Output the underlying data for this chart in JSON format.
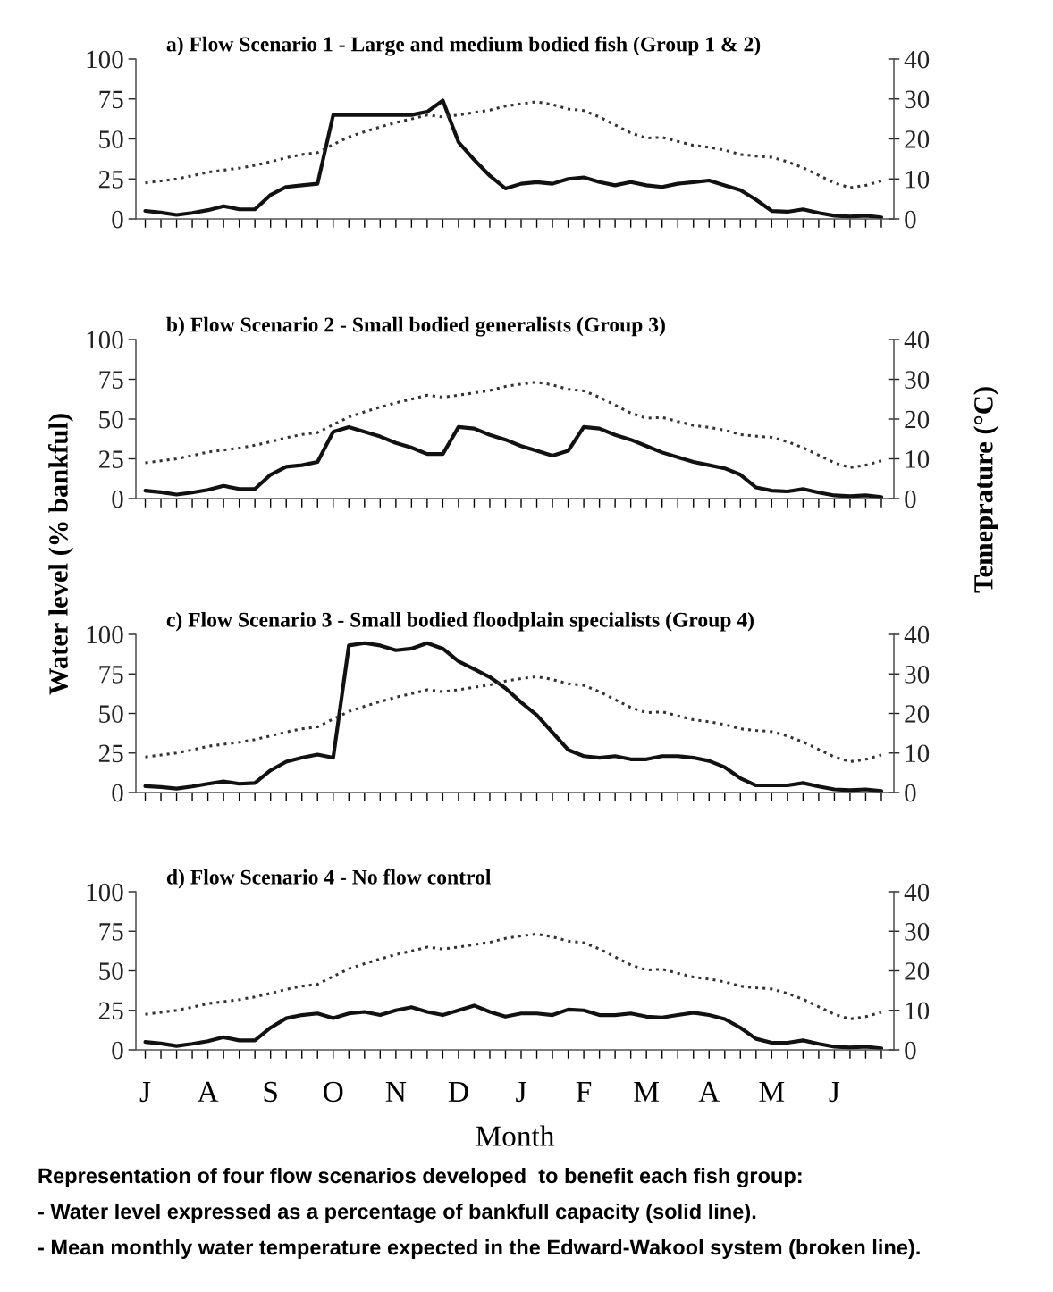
{
  "chart_data": [
    {
      "type": "line",
      "title": "a) Flow Scenario 1 - Large and medium bodied fish (Group 1 & 2)",
      "ylim": [
        0,
        100
      ],
      "yticks": [
        0,
        25,
        50,
        75,
        100
      ],
      "y2lim": [
        0,
        40
      ],
      "y2ticks": [
        0,
        10,
        20,
        30,
        40
      ],
      "grid": false,
      "legend": false,
      "marker": "none",
      "categories": [
        null,
        null,
        null,
        null,
        null,
        null,
        null,
        null,
        null,
        null,
        null,
        null,
        null,
        null,
        null,
        null,
        null,
        null,
        null,
        null,
        null,
        null,
        null,
        null,
        null,
        null,
        null,
        null,
        null,
        null,
        null,
        null,
        null,
        null,
        null,
        null,
        null,
        null,
        null,
        null,
        null,
        null,
        null,
        null,
        null,
        null,
        null,
        null
      ],
      "series": [
        {
          "color": "#111111",
          "line_style": "solid",
          "values": [
            5,
            4,
            2.5,
            3.8,
            5.5,
            8,
            6,
            6,
            15,
            20,
            21,
            22,
            65,
            65,
            65,
            65,
            65,
            65,
            67,
            74,
            48,
            37,
            27,
            19,
            22,
            23,
            22,
            25,
            26,
            23,
            21,
            23,
            21,
            20,
            22,
            23,
            24,
            21,
            18,
            12,
            5,
            4.5,
            6,
            3.8,
            2,
            1.5,
            2,
            1
          ]
        },
        {
          "color": "#333333",
          "line_style": "dotted",
          "axis": "y2",
          "values": [
            9,
            9.5,
            10,
            10.8,
            11.7,
            12.2,
            12.7,
            13.4,
            14.3,
            15.3,
            16.1,
            16.6,
            18.6,
            20.5,
            21.8,
            23,
            24.1,
            25,
            26,
            25.5,
            26,
            26.6,
            27.2,
            28.2,
            28.8,
            29.3,
            28.6,
            27.5,
            27.1,
            25.5,
            23.5,
            21.5,
            20.2,
            20.4,
            19.4,
            18.4,
            17.9,
            17.2,
            16.1,
            15.7,
            15.4,
            14.3,
            12.8,
            10.9,
            9,
            7.8,
            8.4,
            9.5
          ]
        }
      ]
    },
    {
      "type": "line",
      "title": "b) Flow Scenario 2 - Small bodied generalists (Group 3)",
      "ylabel": "Water level (% bankful)",
      "y2label": "Temeprature (°C)",
      "ylim": [
        0,
        100
      ],
      "yticks": [
        0,
        25,
        50,
        75,
        100
      ],
      "y2lim": [
        0,
        40
      ],
      "y2ticks": [
        0,
        10,
        20,
        30,
        40
      ],
      "grid": false,
      "legend": false,
      "marker": "none",
      "categories": [
        null,
        null,
        null,
        null,
        null,
        null,
        null,
        null,
        null,
        null,
        null,
        null,
        null,
        null,
        null,
        null,
        null,
        null,
        null,
        null,
        null,
        null,
        null,
        null,
        null,
        null,
        null,
        null,
        null,
        null,
        null,
        null,
        null,
        null,
        null,
        null,
        null,
        null,
        null,
        null,
        null,
        null,
        null,
        null,
        null,
        null,
        null,
        null
      ],
      "series": [
        {
          "color": "#111111",
          "line_style": "solid",
          "values": [
            5,
            4,
            2.5,
            3.8,
            5.5,
            8,
            6,
            6,
            15,
            20,
            21,
            23,
            42,
            45,
            42,
            39,
            35,
            32,
            28,
            28,
            45,
            44,
            40,
            37,
            33,
            30,
            27,
            30,
            45,
            44,
            40,
            37,
            33,
            29,
            26,
            23,
            21,
            19,
            15,
            7,
            5,
            4.5,
            6,
            3.8,
            2,
            1.5,
            2,
            1
          ]
        },
        {
          "color": "#333333",
          "line_style": "dotted",
          "axis": "y2",
          "values": [
            9,
            9.5,
            10,
            10.8,
            11.7,
            12.2,
            12.7,
            13.4,
            14.3,
            15.3,
            16.1,
            16.6,
            18.6,
            20.5,
            21.8,
            23,
            24.1,
            25,
            26,
            25.5,
            26,
            26.6,
            27.2,
            28.2,
            28.8,
            29.3,
            28.6,
            27.5,
            27.1,
            25.5,
            23.5,
            21.5,
            20.2,
            20.4,
            19.4,
            18.4,
            17.9,
            17.2,
            16.1,
            15.7,
            15.4,
            14.3,
            12.8,
            10.9,
            9,
            7.8,
            8.4,
            9.5
          ]
        }
      ]
    },
    {
      "type": "line",
      "title": "c) Flow Scenario 3 - Small bodied floodplain specialists (Group 4)",
      "ylim": [
        0,
        100
      ],
      "yticks": [
        0,
        25,
        50,
        75,
        100
      ],
      "y2lim": [
        0,
        40
      ],
      "y2ticks": [
        0,
        10,
        20,
        30,
        40
      ],
      "grid": false,
      "legend": false,
      "marker": "none",
      "categories": [
        null,
        null,
        null,
        null,
        null,
        null,
        null,
        null,
        null,
        null,
        null,
        null,
        null,
        null,
        null,
        null,
        null,
        null,
        null,
        null,
        null,
        null,
        null,
        null,
        null,
        null,
        null,
        null,
        null,
        null,
        null,
        null,
        null,
        null,
        null,
        null,
        null,
        null,
        null,
        null,
        null,
        null,
        null,
        null,
        null,
        null,
        null,
        null
      ],
      "series": [
        {
          "color": "#111111",
          "line_style": "solid",
          "values": [
            4,
            3.5,
            2.5,
            3.8,
            5.5,
            7,
            5.5,
            6,
            14,
            19.5,
            22,
            24,
            22,
            93,
            94.5,
            93,
            90,
            91,
            94.5,
            91,
            83,
            78,
            73,
            66,
            57,
            49,
            38,
            27,
            23,
            22,
            23,
            21,
            21,
            23,
            23,
            22,
            20,
            16,
            9,
            4.5,
            4.5,
            4.5,
            6,
            3.8,
            2,
            1.5,
            2,
            1
          ]
        },
        {
          "color": "#333333",
          "line_style": "dotted",
          "axis": "y2",
          "values": [
            9,
            9.5,
            10,
            10.8,
            11.7,
            12.2,
            12.7,
            13.4,
            14.3,
            15.3,
            16.1,
            16.6,
            18.6,
            20.5,
            21.8,
            23,
            24.1,
            25,
            26,
            25.5,
            26,
            26.6,
            27.2,
            28.2,
            28.8,
            29.3,
            28.6,
            27.5,
            27.1,
            25.5,
            23.5,
            21.5,
            20.2,
            20.4,
            19.4,
            18.4,
            17.9,
            17.2,
            16.1,
            15.7,
            15.4,
            14.3,
            12.8,
            10.9,
            9,
            7.8,
            8.4,
            9.5
          ]
        }
      ]
    },
    {
      "type": "line",
      "title": "d) Flow Scenario 4 - No flow control",
      "xlabel": "Month",
      "ylim": [
        0,
        100
      ],
      "yticks": [
        0,
        25,
        50,
        75,
        100
      ],
      "y2lim": [
        0,
        40
      ],
      "y2ticks": [
        0,
        10,
        20,
        30,
        40
      ],
      "grid": false,
      "legend": false,
      "marker": "none",
      "categories": [
        "J",
        null,
        null,
        null,
        "A",
        null,
        null,
        null,
        "S",
        null,
        null,
        null,
        "O",
        null,
        null,
        null,
        "N",
        null,
        null,
        null,
        "D",
        null,
        null,
        null,
        "J",
        null,
        null,
        null,
        "F",
        null,
        null,
        null,
        "M",
        null,
        null,
        null,
        "A",
        null,
        null,
        null,
        "M",
        null,
        null,
        null,
        "J",
        null,
        null,
        null
      ],
      "annotations": [
        "Representation of four flow scenarios developed  to benefit each fish group:",
        "- Water level expressed as a percentage of bankfull capacity (solid line).",
        "- Mean monthly water temperature expected in the Edward-Wakool system (broken line)."
      ],
      "series": [
        {
          "color": "#111111",
          "line_style": "solid",
          "values": [
            5,
            4,
            2.5,
            3.8,
            5.5,
            8,
            6,
            6,
            14,
            20,
            22,
            23,
            20,
            23,
            24,
            22,
            25,
            27,
            24,
            22,
            25,
            28,
            24,
            21,
            23,
            23,
            22,
            25.5,
            25,
            22,
            22,
            23,
            21,
            20.5,
            22,
            23.5,
            22,
            19.5,
            14,
            7,
            4.5,
            4.5,
            6,
            3.8,
            2,
            1.5,
            2,
            1
          ]
        },
        {
          "color": "#333333",
          "line_style": "dotted",
          "axis": "y2",
          "values": [
            9,
            9.5,
            10,
            10.8,
            11.7,
            12.2,
            12.7,
            13.4,
            14.3,
            15.3,
            16.1,
            16.6,
            18.6,
            20.5,
            21.8,
            23,
            24.1,
            25,
            26,
            25.5,
            26,
            26.6,
            27.2,
            28.2,
            28.8,
            29.3,
            28.6,
            27.5,
            27.1,
            25.5,
            23.5,
            21.5,
            20.2,
            20.4,
            19.4,
            18.4,
            17.9,
            17.2,
            16.1,
            15.7,
            15.4,
            14.3,
            12.8,
            10.9,
            9,
            7.8,
            8.4,
            9.5
          ]
        }
      ]
    }
  ]
}
